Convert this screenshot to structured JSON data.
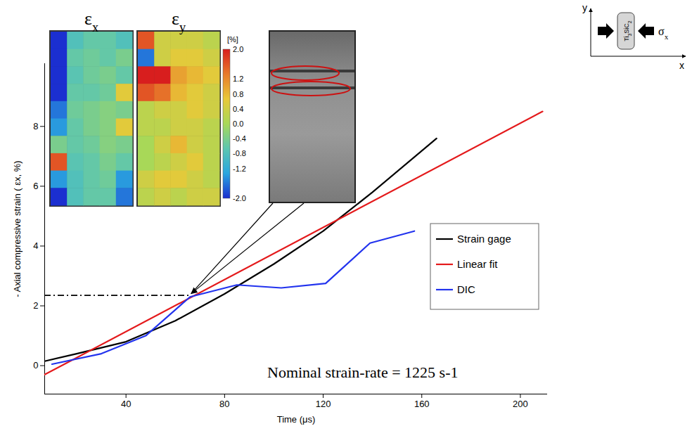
{
  "chart_data": {
    "type": "line",
    "xlabel": "Time (μs)",
    "ylabel": "- Axial compressive strain ( εx, %)",
    "xlim": [
      7,
      211
    ],
    "xticks": [
      40,
      80,
      120,
      160,
      200
    ],
    "ylim": [
      -0.95,
      10.1
    ],
    "yticks": [
      0,
      2,
      4,
      6,
      8
    ],
    "legend": "right",
    "series": [
      {
        "name": "Strain gage",
        "color": "#000000",
        "x": [
          7,
          20,
          40,
          60,
          80,
          100,
          120,
          140,
          166
        ],
        "values": [
          0.15,
          0.4,
          0.8,
          1.5,
          2.4,
          3.4,
          4.5,
          5.8,
          7.6
        ]
      },
      {
        "name": "Linear fit",
        "color": "#e41a1c",
        "x": [
          7,
          209
        ],
        "values": [
          -0.3,
          8.5
        ]
      },
      {
        "name": "DIC",
        "color": "#2233ee",
        "x": [
          10,
          30,
          48,
          66,
          85,
          103,
          121,
          139,
          157
        ],
        "values": [
          0.05,
          0.4,
          1.0,
          2.3,
          2.7,
          2.6,
          2.75,
          4.1,
          4.5
        ]
      }
    ],
    "annotation": "Nominal strain-rate = 1225 s-1",
    "annotation_point": {
      "x": 66,
      "y": 2.35
    },
    "insets": [
      {
        "title": "εx",
        "cells": [
          [
            -2,
            -0.8,
            -0.6,
            -0.6,
            -0.8
          ],
          [
            -2,
            -0.6,
            -0.5,
            -0.6,
            -0.4
          ],
          [
            -2,
            -0.7,
            -0.5,
            -0.4,
            -0.6
          ],
          [
            -2,
            -0.6,
            -0.6,
            -0.5,
            0.6
          ],
          [
            -1.6,
            -0.5,
            -0.4,
            -0.3,
            -0.4
          ],
          [
            -1.4,
            -0.6,
            -0.4,
            -0.3,
            0.6
          ],
          [
            -0.4,
            -0.6,
            -0.5,
            -0.3,
            -0.4
          ],
          [
            1.6,
            -0.7,
            -0.6,
            -0.4,
            -0.6
          ],
          [
            -1.4,
            -0.8,
            -0.6,
            -0.5,
            -1.4
          ],
          [
            -2,
            -0.8,
            -0.6,
            -0.6,
            -1.6
          ]
        ]
      },
      {
        "title": "εy",
        "cells": [
          [
            1.6,
            0.4,
            0.4,
            0.4,
            0.2
          ],
          [
            -1.6,
            0.4,
            0.6,
            0.6,
            0.4
          ],
          [
            2,
            2,
            1.0,
            0.8,
            0.6
          ],
          [
            1.6,
            1.4,
            0.8,
            0.6,
            0.4
          ],
          [
            0.2,
            0.4,
            0.4,
            0.6,
            0.4
          ],
          [
            0.2,
            0.2,
            0.4,
            0.4,
            0.2
          ],
          [
            0,
            0.4,
            0.8,
            0.4,
            0.2
          ],
          [
            0,
            0.2,
            0.4,
            0.6,
            0.2
          ],
          [
            0.4,
            0.6,
            0.6,
            0.4,
            0.2
          ],
          [
            0.2,
            0.4,
            0.2,
            0.4,
            0.4
          ]
        ]
      }
    ],
    "colorbar": {
      "unit": "[%]",
      "range": [
        -2,
        2
      ],
      "ticks": [
        {
          "value": 2,
          "label": "2.0"
        },
        {
          "value": 1.2,
          "label": "1.2"
        },
        {
          "value": 0.8,
          "label": "0.8"
        },
        {
          "value": 0.4,
          "label": "0.4"
        },
        {
          "value": 0,
          "label": "0.0"
        },
        {
          "value": -0.4,
          "label": "-0.4"
        },
        {
          "value": -0.8,
          "label": "-0.8"
        },
        {
          "value": -1.2,
          "label": "-1.2"
        },
        {
          "value": -2,
          "label": "-2.0"
        }
      ]
    },
    "schematic": {
      "specimen": "Ti3SiC2",
      "stress": "σx",
      "x_axis": "x",
      "y_axis": "y"
    }
  }
}
